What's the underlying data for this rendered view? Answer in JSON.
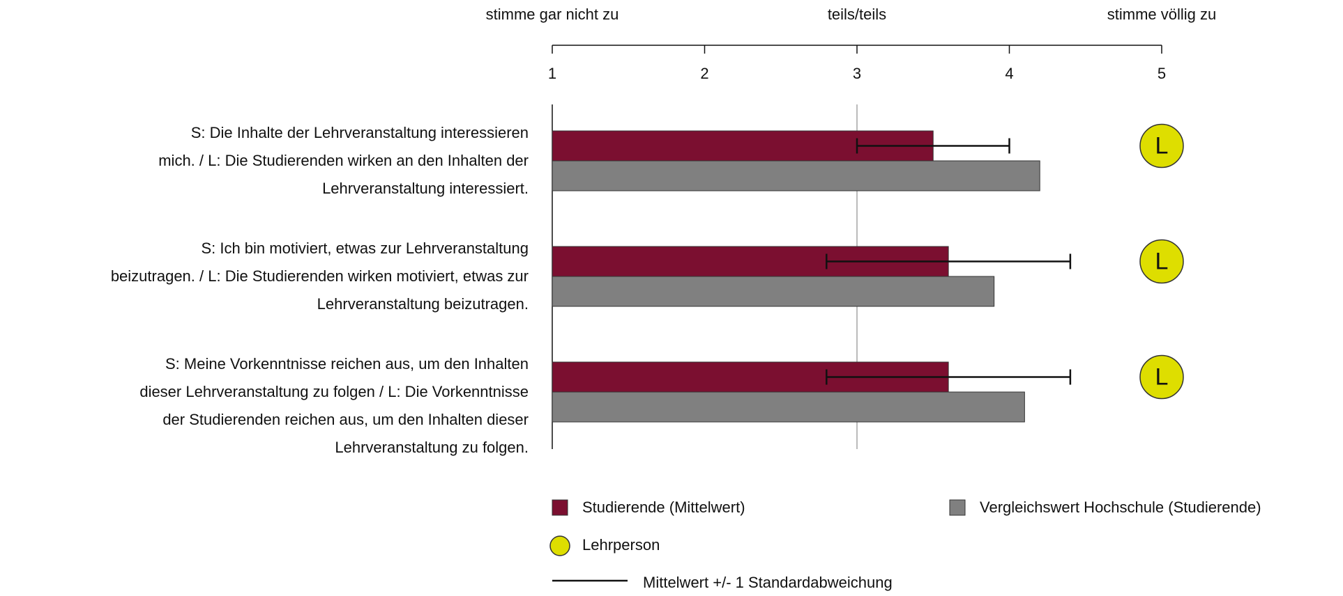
{
  "chart_data": {
    "type": "bar",
    "orientation": "horizontal",
    "categories": [
      [
        "S: Die Inhalte der Lehrveranstaltung interessieren",
        "mich. / L: Die Studierenden wirken an den Inhalten der",
        "Lehrveranstaltung interessiert."
      ],
      [
        "S: Ich bin motiviert, etwas zur Lehrveranstaltung",
        "beizutragen. / L: Die Studierenden wirken motiviert, etwas zur",
        "Lehrveranstaltung beizutragen."
      ],
      [
        "S: Meine Vorkenntnisse reichen aus, um den Inhalten",
        "dieser Lehrveranstaltung zu folgen / L: Die Vorkenntnisse",
        "der Studierenden reichen aus, um den Inhalten dieser",
        "Lehrveranstaltung zu folgen."
      ]
    ],
    "series": [
      {
        "name": "Studierende (Mittelwert)",
        "color": "#7b0f30",
        "values": [
          3.5,
          3.6,
          3.6
        ],
        "errors": [
          0.5,
          0.8,
          0.8
        ]
      },
      {
        "name": "Vergleichswert Hochschule (Studierende)",
        "color": "#808080",
        "values": [
          4.2,
          3.9,
          4.1
        ]
      },
      {
        "name": "Lehrperson",
        "color": "#dede00",
        "marker": "circle",
        "marker_label": "L",
        "values": [
          5,
          5,
          5
        ]
      }
    ],
    "error_legend": "Mittelwert +/- 1 Standardabweichung",
    "xlim": [
      1,
      5
    ],
    "xticks": [
      1,
      2,
      3,
      4,
      5
    ],
    "scale_labels": [
      {
        "value": 1,
        "label": "stimme gar nicht zu"
      },
      {
        "value": 3,
        "label": "teils/teils"
      },
      {
        "value": 5,
        "label": "stimme völlig zu"
      }
    ],
    "reference_line": 3
  }
}
